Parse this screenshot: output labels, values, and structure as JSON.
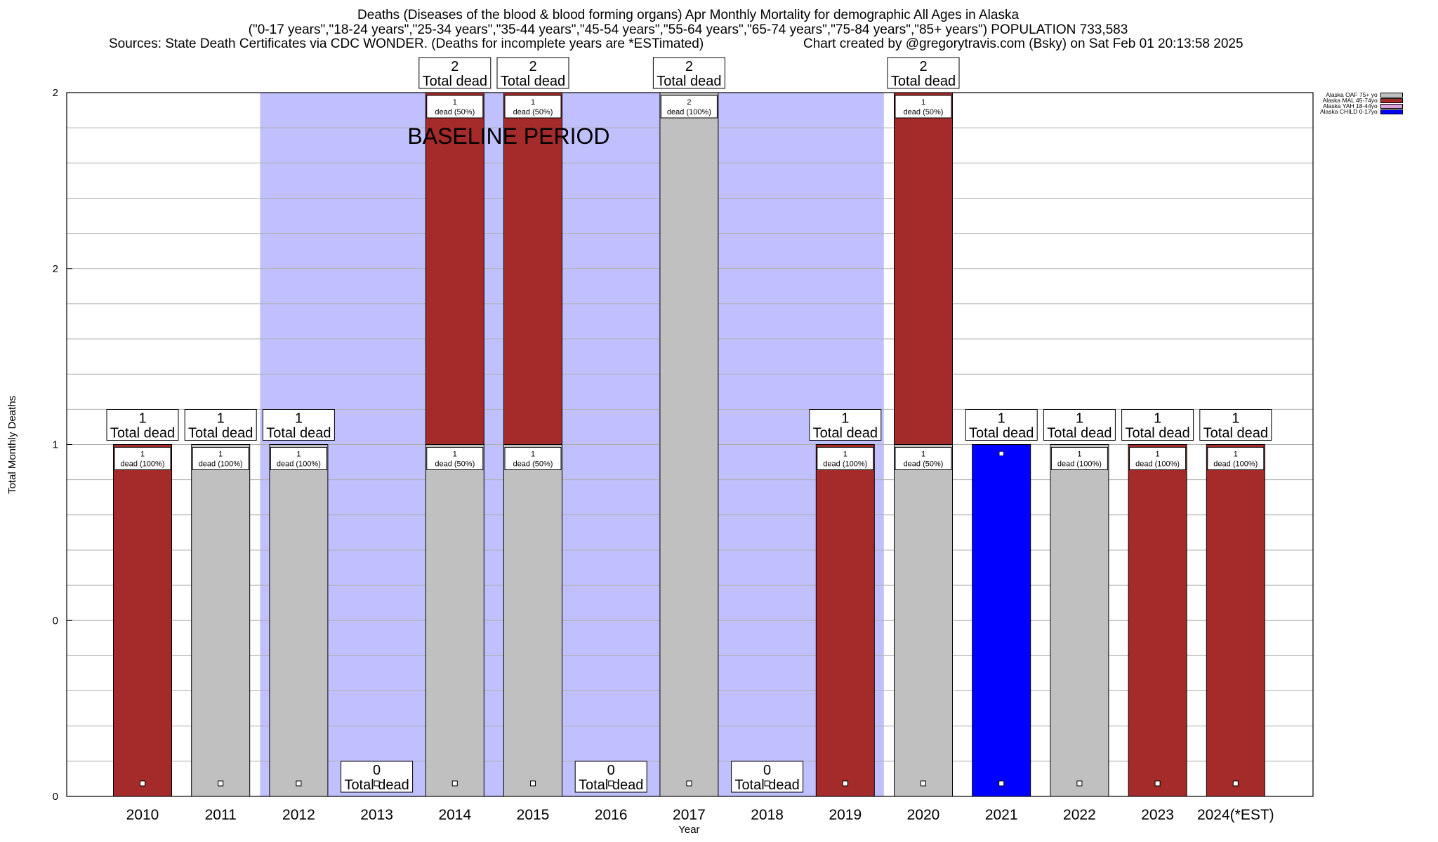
{
  "title": {
    "line1": "Deaths (Diseases of the blood & blood forming organs) Apr Monthly Mortality for demographic All Ages in Alaska",
    "line2": "(\"0-17 years\",\"18-24 years\",\"25-34 years\",\"35-44 years\",\"45-54 years\",\"55-64 years\",\"65-74 years\",\"75-84 years\",\"85+ years\") POPULATION 733,583",
    "line3": "Sources: State Death Certificates via CDC WONDER. (Deaths for incomplete years are *ESTimated)",
    "line4": "Chart created by @gregorytravis.com (Bsky) on Sat Feb 01 20:13:58 2025"
  },
  "chart_data": {
    "type": "bar",
    "stacked": true,
    "xlabel": "Year",
    "ylabel": "Total Monthly Deaths",
    "y_tick_labels": [
      "0",
      "0",
      "1",
      "2",
      "2"
    ],
    "ylim": [
      0,
      2
    ],
    "grid": true,
    "legend_position": "top-right",
    "baseline_label": "BASELINE PERIOD",
    "baseline_range": [
      "2012",
      "2019"
    ],
    "categories": [
      "2010",
      "2011",
      "2012",
      "2013",
      "2014",
      "2015",
      "2016",
      "2017",
      "2018",
      "2019",
      "2020",
      "2021",
      "2022",
      "2023",
      "2024(*EST)"
    ],
    "totals": [
      1,
      1,
      1,
      0,
      2,
      2,
      0,
      2,
      0,
      1,
      2,
      1,
      1,
      1,
      1
    ],
    "total_label_suffix": "Total dead",
    "series": [
      {
        "name": "Alaska OAF 75+ yo",
        "color": "#c0c0c0",
        "values": [
          0,
          1,
          1,
          0,
          1,
          1,
          0,
          2,
          0,
          0,
          1,
          0,
          1,
          0,
          0
        ]
      },
      {
        "name": "Alaska MAL 45-74yo",
        "color": "#a52a2a",
        "values": [
          1,
          0,
          0,
          0,
          1,
          1,
          0,
          0,
          0,
          1,
          1,
          0,
          0,
          1,
          1
        ]
      },
      {
        "name": "Alaska YAH 18-44yo",
        "color": "#dda0dd",
        "values": [
          0,
          0,
          0,
          0,
          0,
          0,
          0,
          0,
          0,
          0,
          0,
          0,
          0,
          0,
          0
        ]
      },
      {
        "name": "Alaska CHILD 0-17yo",
        "color": "#0000ff",
        "values": [
          0,
          0,
          0,
          0,
          0,
          0,
          0,
          0,
          0,
          0,
          0,
          1,
          0,
          0,
          0
        ]
      }
    ],
    "segment_labels": [
      [
        {
          "count": "1",
          "pct": "dead (100%)"
        }
      ],
      [
        {
          "count": "1",
          "pct": "dead (100%)"
        }
      ],
      [
        {
          "count": "1",
          "pct": "dead (100%)"
        }
      ],
      [],
      [
        {
          "count": "1",
          "pct": "dead (50%)"
        },
        {
          "count": "1",
          "pct": "dead (50%)"
        }
      ],
      [
        {
          "count": "1",
          "pct": "dead (50%)"
        },
        {
          "count": "1",
          "pct": "dead (50%)"
        }
      ],
      [],
      [
        {
          "count": "2",
          "pct": "dead (100%)"
        }
      ],
      [],
      [
        {
          "count": "1",
          "pct": "dead (100%)"
        }
      ],
      [
        {
          "count": "1",
          "pct": "dead (50%)"
        },
        {
          "count": "1",
          "pct": "dead (50%)"
        }
      ],
      [],
      [
        {
          "count": "1",
          "pct": "dead (100%)"
        }
      ],
      [
        {
          "count": "1",
          "pct": "dead (100%)"
        }
      ],
      [
        {
          "count": "1",
          "pct": "dead (100%)"
        }
      ]
    ],
    "colors": {
      "baseline_shade": "#c0c0ff",
      "grid": "#b0b0b0"
    }
  }
}
